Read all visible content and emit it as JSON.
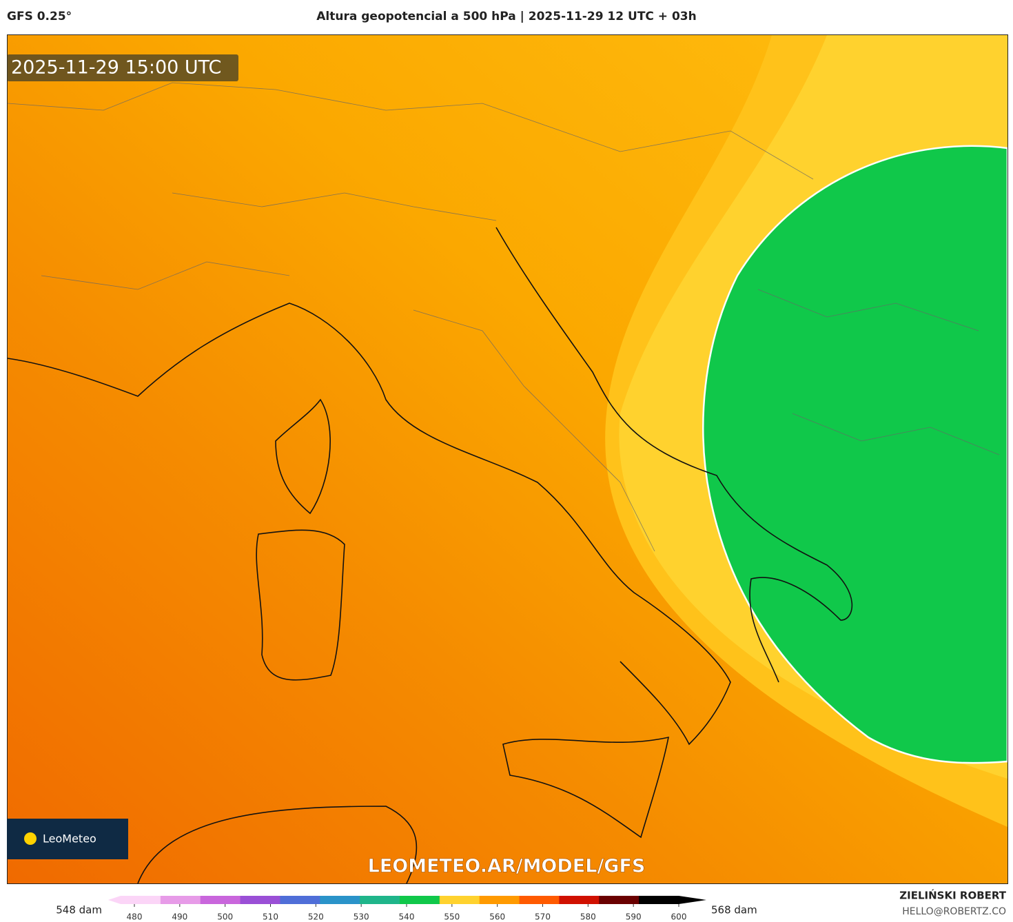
{
  "header": {
    "model": "GFS 0.25°",
    "title": "Altura geopotencial a 500 hPa | 2025-11-29 12 UTC + 03h"
  },
  "map": {
    "timestamp": "2025-11-29 15:00 UTC",
    "logo": "LeoMeteo",
    "watermark": "LEOMETEO.AR/MODEL/GFS"
  },
  "colorbar": {
    "ticks": [
      480,
      490,
      500,
      510,
      520,
      530,
      540,
      550,
      560,
      570,
      580,
      590,
      600
    ],
    "colors": [
      "#fbd5f7",
      "#e79be8",
      "#c966dc",
      "#9a4fd6",
      "#4f6ed8",
      "#2a93c9",
      "#1fb58a",
      "#10c84a",
      "#ffd22e",
      "#ff9a00",
      "#ff5a00",
      "#d01000",
      "#6a0000",
      "#000000"
    ],
    "min_label": "548 dam",
    "max_label": "568 dam"
  },
  "footer": {
    "author": "ZIELIŃSKI ROBERT",
    "email": "HELLO@ROBERTZ.CO"
  }
}
